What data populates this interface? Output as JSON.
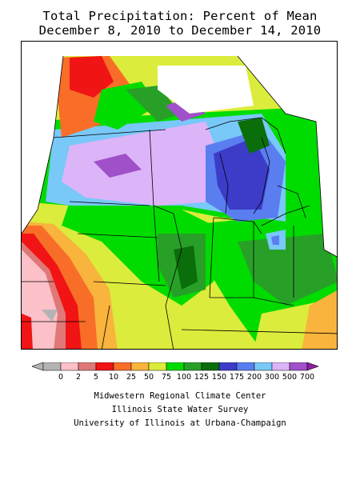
{
  "title": {
    "line1": "Total Precipitation: Percent of Mean",
    "line2": "December 8, 2010 to December 14, 2010"
  },
  "legend": {
    "bins": [
      {
        "label": "0",
        "color": "#b4b4b4"
      },
      {
        "label": "2",
        "color": "#fcc0c8"
      },
      {
        "label": "5",
        "color": "#e07878"
      },
      {
        "label": "10",
        "color": "#f01414"
      },
      {
        "label": "25",
        "color": "#f86e28"
      },
      {
        "label": "50",
        "color": "#f8b43c"
      },
      {
        "label": "75",
        "color": "#dcec3c"
      },
      {
        "label": "100",
        "color": "#00dc00"
      },
      {
        "label": "125",
        "color": "#28a028"
      },
      {
        "label": "150",
        "color": "#0a6e0a"
      },
      {
        "label": "175",
        "color": "#3c3cc8"
      },
      {
        "label": "200",
        "color": "#5a7ef0"
      },
      {
        "label": "300",
        "color": "#78c8f8"
      },
      {
        "label": "500",
        "color": "#dcb4f8"
      },
      {
        "label": "700",
        "color": "#a050c8"
      }
    ],
    "overflow_color": "#8c1ea0"
  },
  "credits": [
    "Midwestern Regional Climate Center",
    "Illinois State Water Survey",
    "University of Illinois at Urbana-Champaign"
  ]
}
